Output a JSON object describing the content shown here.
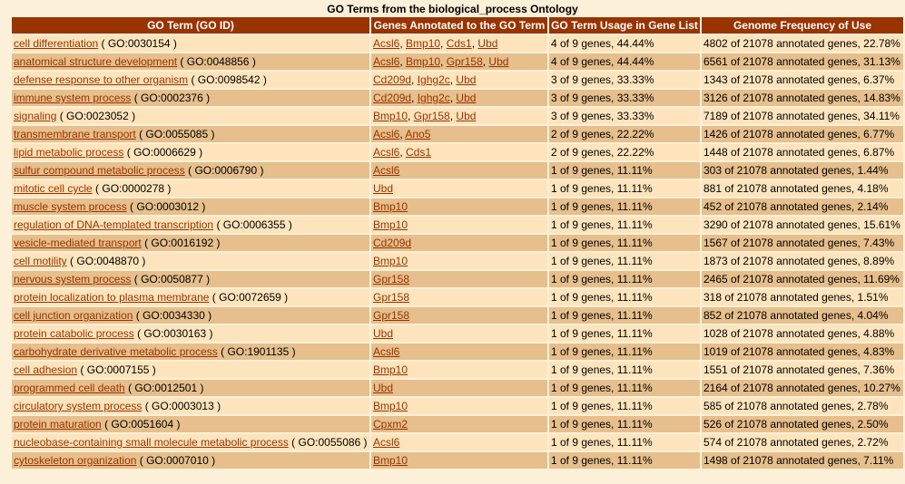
{
  "title": "GO Terms from the biological_process Ontology",
  "headers": [
    "GO Term (GO ID)",
    "Genes Annotated to the GO Term",
    "GO Term Usage in Gene List",
    "Genome Frequency of Use"
  ],
  "rows": [
    {
      "term": "cell differentiation",
      "id": "GO:0030154",
      "genes": [
        "Acsl6",
        "Bmp10",
        "Cds1",
        "Ubd"
      ],
      "usage": "4 of 9 genes, 44.44%",
      "freq": "4802 of 21078 annotated genes, 22.78%"
    },
    {
      "term": "anatomical structure development",
      "id": "GO:0048856",
      "genes": [
        "Acsl6",
        "Bmp10",
        "Gpr158",
        "Ubd"
      ],
      "usage": "4 of 9 genes, 44.44%",
      "freq": "6561 of 21078 annotated genes, 31.13%"
    },
    {
      "term": "defense response to other organism",
      "id": "GO:0098542",
      "genes": [
        "Cd209d",
        "Ighg2c",
        "Ubd"
      ],
      "usage": "3 of 9 genes, 33.33%",
      "freq": "1343 of 21078 annotated genes, 6.37%"
    },
    {
      "term": "immune system process",
      "id": "GO:0002376",
      "genes": [
        "Cd209d",
        "Ighg2c",
        "Ubd"
      ],
      "usage": "3 of 9 genes, 33.33%",
      "freq": "3126 of 21078 annotated genes, 14.83%"
    },
    {
      "term": "signaling",
      "id": "GO:0023052",
      "genes": [
        "Bmp10",
        "Gpr158",
        "Ubd"
      ],
      "usage": "3 of 9 genes, 33.33%",
      "freq": "7189 of 21078 annotated genes, 34.11%"
    },
    {
      "term": "transmembrane transport",
      "id": "GO:0055085",
      "genes": [
        "Acsl6",
        "Ano5"
      ],
      "usage": "2 of 9 genes, 22.22%",
      "freq": "1426 of 21078 annotated genes, 6.77%"
    },
    {
      "term": "lipid metabolic process",
      "id": "GO:0006629",
      "genes": [
        "Acsl6",
        "Cds1"
      ],
      "usage": "2 of 9 genes, 22.22%",
      "freq": "1448 of 21078 annotated genes, 6.87%"
    },
    {
      "term": "sulfur compound metabolic process",
      "id": "GO:0006790",
      "genes": [
        "Acsl6"
      ],
      "usage": "1 of 9 genes, 11.11%",
      "freq": "303 of 21078 annotated genes, 1.44%"
    },
    {
      "term": "mitotic cell cycle",
      "id": "GO:0000278",
      "genes": [
        "Ubd"
      ],
      "usage": "1 of 9 genes, 11.11%",
      "freq": "881 of 21078 annotated genes, 4.18%"
    },
    {
      "term": "muscle system process",
      "id": "GO:0003012",
      "genes": [
        "Bmp10"
      ],
      "usage": "1 of 9 genes, 11.11%",
      "freq": "452 of 21078 annotated genes, 2.14%"
    },
    {
      "term": "regulation of DNA-templated transcription",
      "id": "GO:0006355",
      "genes": [
        "Bmp10"
      ],
      "usage": "1 of 9 genes, 11.11%",
      "freq": "3290 of 21078 annotated genes, 15.61%"
    },
    {
      "term": "vesicle-mediated transport",
      "id": "GO:0016192",
      "genes": [
        "Cd209d"
      ],
      "usage": "1 of 9 genes, 11.11%",
      "freq": "1567 of 21078 annotated genes, 7.43%"
    },
    {
      "term": "cell motility",
      "id": "GO:0048870",
      "genes": [
        "Bmp10"
      ],
      "usage": "1 of 9 genes, 11.11%",
      "freq": "1873 of 21078 annotated genes, 8.89%"
    },
    {
      "term": "nervous system process",
      "id": "GO:0050877",
      "genes": [
        "Gpr158"
      ],
      "usage": "1 of 9 genes, 11.11%",
      "freq": "2465 of 21078 annotated genes, 11.69%"
    },
    {
      "term": "protein localization to plasma membrane",
      "id": "GO:0072659",
      "genes": [
        "Gpr158"
      ],
      "usage": "1 of 9 genes, 11.11%",
      "freq": "318 of 21078 annotated genes, 1.51%"
    },
    {
      "term": "cell junction organization",
      "id": "GO:0034330",
      "genes": [
        "Gpr158"
      ],
      "usage": "1 of 9 genes, 11.11%",
      "freq": "852 of 21078 annotated genes, 4.04%"
    },
    {
      "term": "protein catabolic process",
      "id": "GO:0030163",
      "genes": [
        "Ubd"
      ],
      "usage": "1 of 9 genes, 11.11%",
      "freq": "1028 of 21078 annotated genes, 4.88%"
    },
    {
      "term": "carbohydrate derivative metabolic process",
      "id": "GO:1901135",
      "genes": [
        "Acsl6"
      ],
      "usage": "1 of 9 genes, 11.11%",
      "freq": "1019 of 21078 annotated genes, 4.83%"
    },
    {
      "term": "cell adhesion",
      "id": "GO:0007155",
      "genes": [
        "Bmp10"
      ],
      "usage": "1 of 9 genes, 11.11%",
      "freq": "1551 of 21078 annotated genes, 7.36%"
    },
    {
      "term": "programmed cell death",
      "id": "GO:0012501",
      "genes": [
        "Ubd"
      ],
      "usage": "1 of 9 genes, 11.11%",
      "freq": "2164 of 21078 annotated genes, 10.27%"
    },
    {
      "term": "circulatory system process",
      "id": "GO:0003013",
      "genes": [
        "Bmp10"
      ],
      "usage": "1 of 9 genes, 11.11%",
      "freq": "585 of 21078 annotated genes, 2.78%"
    },
    {
      "term": "protein maturation",
      "id": "GO:0051604",
      "genes": [
        "Cpxm2"
      ],
      "usage": "1 of 9 genes, 11.11%",
      "freq": "526 of 21078 annotated genes, 2.50%"
    },
    {
      "term": "nucleobase-containing small molecule metabolic process",
      "id": "GO:0055086",
      "genes": [
        "Acsl6"
      ],
      "usage": "1 of 9 genes, 11.11%",
      "freq": "574 of 21078 annotated genes, 2.72%"
    },
    {
      "term": "cytoskeleton organization",
      "id": "GO:0007010",
      "genes": [
        "Bmp10"
      ],
      "usage": "1 of 9 genes, 11.11%",
      "freq": "1498 of 21078 annotated genes, 7.11%"
    }
  ]
}
